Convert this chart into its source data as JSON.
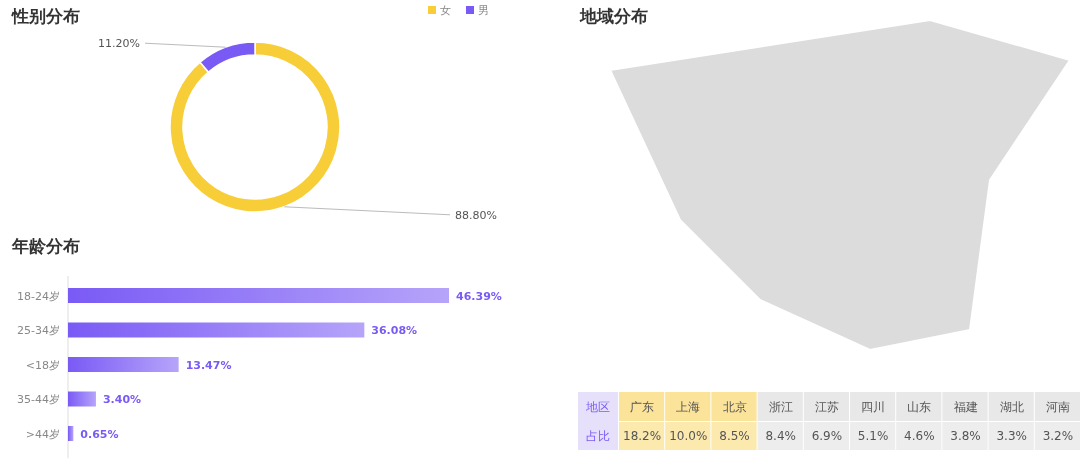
{
  "chart_data": [
    {
      "type": "donut",
      "title": "性别分布",
      "categories": [
        "女",
        "男"
      ],
      "values": [
        88.8,
        11.2
      ],
      "colors": [
        "#f7cd38",
        "#7a5af5"
      ],
      "value_labels": [
        "88.80%",
        "11.20%"
      ],
      "legend": "top right"
    },
    {
      "type": "bar",
      "orientation": "horizontal",
      "title": "年龄分布",
      "categories": [
        "18-24岁",
        "25-34岁",
        "<18岁",
        "35-44岁",
        ">44岁"
      ],
      "values": [
        46.39,
        36.08,
        13.47,
        3.4,
        0.65
      ],
      "color": "#7a5af5",
      "value_labels": [
        "46.39%",
        "36.08%",
        "13.47%",
        "3.40%",
        "0.65%"
      ]
    },
    {
      "type": "other",
      "title": "地域分布",
      "xlabel": "地区",
      "ylabel": "占比",
      "categories": [
        "广东",
        "上海",
        "北京",
        "浙江",
        "江苏",
        "四川",
        "山东",
        "福建",
        "湖北",
        "河南"
      ],
      "value_labels": [
        "18.2%",
        "10.0%",
        "8.5%",
        "8.4%",
        "6.9%",
        "5.1%",
        "4.6%",
        "3.8%",
        "3.3%",
        "3.2%"
      ],
      "colors": [
        "#fbe39a",
        "#fbe39a",
        "#fbe39a",
        "#e8e8e8",
        "#e8e8e8",
        "#e8e8e8",
        "#e8e8e8",
        "#e8e8e8",
        "#e8e8e8",
        "#e8e8e8"
      ]
    }
  ]
}
